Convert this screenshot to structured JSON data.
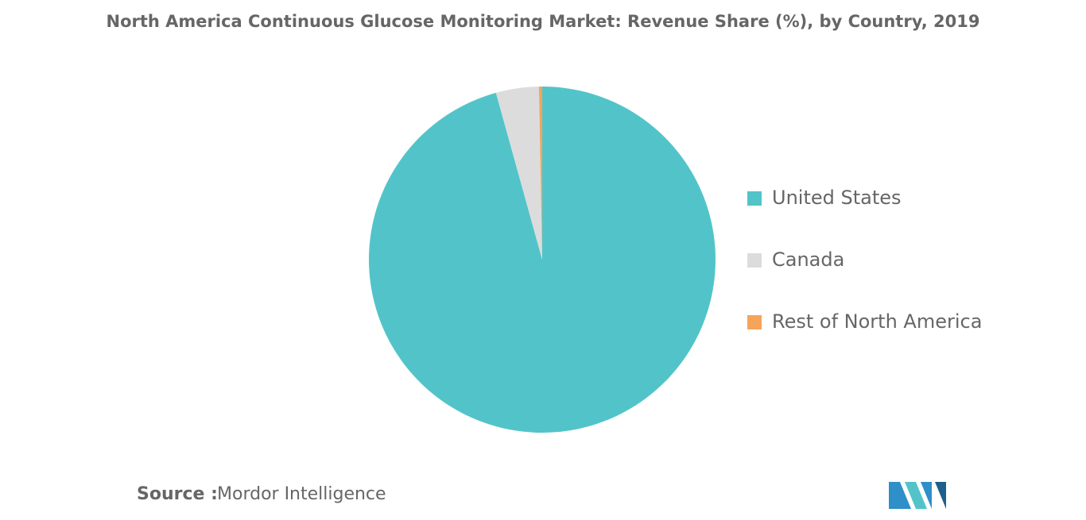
{
  "chart_data": {
    "type": "pie",
    "title": "North America Continuous Glucose Monitoring Market: Revenue Share (%), by Country, 2019",
    "categories": [
      "United States",
      "Canada",
      "Rest of North America"
    ],
    "values": [
      95.7,
      4.0,
      0.3
    ],
    "colors": [
      "#52c4c9",
      "#dcdcdc",
      "#f6a35c"
    ],
    "legend": "right"
  },
  "footer": {
    "source_label": "Source :",
    "source_text": "Mordor Intelligence"
  }
}
